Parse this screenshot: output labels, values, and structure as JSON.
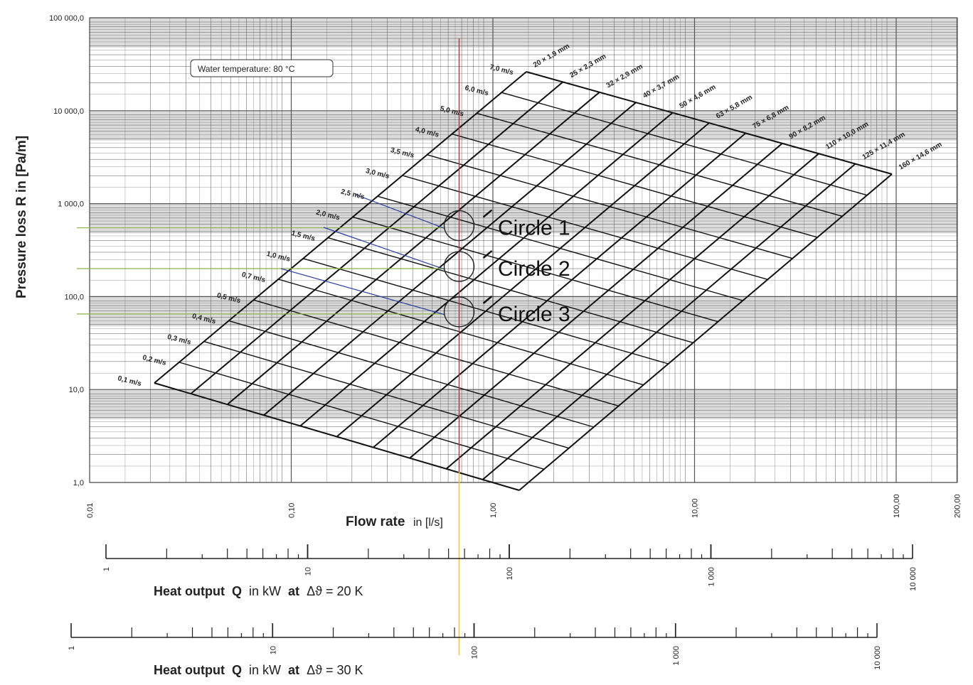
{
  "chart_data": {
    "type": "line",
    "xlabel": "Flow rate",
    "xlabel_unit": "in  [l/s]",
    "ylabel": "Pressure loss   R   in  [Pa/m]",
    "x_scale": "log",
    "y_scale": "log",
    "xlim": [
      0.01,
      200
    ],
    "ylim": [
      1,
      100000
    ],
    "x_ticks": [
      {
        "value": 0.01,
        "label": "0,01"
      },
      {
        "value": 0.1,
        "label": "0,10"
      },
      {
        "value": 1,
        "label": "1,00"
      },
      {
        "value": 10,
        "label": "10,00"
      },
      {
        "value": 100,
        "label": "100,00"
      },
      {
        "value": 200,
        "label": "200,00"
      }
    ],
    "y_ticks": [
      {
        "value": 1,
        "label": "1,0"
      },
      {
        "value": 10,
        "label": "10,0"
      },
      {
        "value": 100,
        "label": "100,0"
      },
      {
        "value": 1000,
        "label": "1 000,0"
      },
      {
        "value": 10000,
        "label": "10 000,0"
      },
      {
        "value": 100000,
        "label": "100 000,0"
      }
    ],
    "grid": true,
    "annotation": "Water temperature: 80 °C",
    "velocities": [
      "0,1 m/s",
      "0,2 m/s",
      "0,3 m/s",
      "0,4 m/s",
      "0,5 m/s",
      "0,7 m/s",
      "1,0 m/s",
      "1,5 m/s",
      "2,0 m/s",
      "2,5 m/s",
      "3,0 m/s",
      "3,5 m/s",
      "4,0 m/s",
      "5,0 m/s",
      "6,0 m/s",
      "7,0 m/s"
    ],
    "pipe_sizes": [
      "20 × 1,9 mm",
      "25 × 2,3 mm",
      "32 × 2,9 mm",
      "40 × 3,7 mm",
      "50 × 4,6 mm",
      "63 × 5,8 mm",
      "75 × 6,8 mm",
      "90 × 8,2 mm",
      "110 × 10,0 mm",
      "125 × 11,4 mm",
      "160 × 14,6 mm"
    ],
    "marker_flow_rate": 0.68,
    "circles": [
      {
        "label": "Circle 1",
        "pressure_loss": 550
      },
      {
        "label": "Circle 2",
        "pressure_loss": 200
      },
      {
        "label": "Circle 3",
        "pressure_loss": 65
      }
    ]
  },
  "heat_scales": [
    {
      "title_prefix": "Heat output",
      "symbol": "Q",
      "unit": "in kW",
      "at": "at",
      "delta": "Δϑ = 20 K",
      "ticks": [
        {
          "value": 1,
          "label": "1"
        },
        {
          "value": 10,
          "label": "10"
        },
        {
          "value": 100,
          "label": "100"
        },
        {
          "value": 1000,
          "label": "1 000"
        },
        {
          "value": 10000,
          "label": "10 000"
        }
      ]
    },
    {
      "title_prefix": "Heat output",
      "symbol": "Q",
      "unit": "in kW",
      "at": "at",
      "delta": "Δϑ = 30 K",
      "ticks": [
        {
          "value": 1,
          "label": "1"
        },
        {
          "value": 10,
          "label": "10"
        },
        {
          "value": 100,
          "label": "100"
        },
        {
          "value": 1000,
          "label": "1 000"
        },
        {
          "value": 10000,
          "label": "10 000"
        }
      ]
    }
  ],
  "colors": {
    "grid": "#555555",
    "band": "#bdbdbd",
    "marker_red": "#e02020",
    "marker_yellow": "#f2cf00",
    "green_line": "#8cb04a",
    "blue_line": "#2b3fa0",
    "mesh": "#111111"
  }
}
